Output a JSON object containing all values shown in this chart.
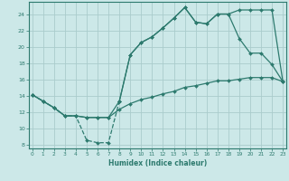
{
  "xlabel": "Humidex (Indice chaleur)",
  "bg_color": "#cce8e8",
  "grid_color": "#aacccc",
  "line_color": "#2d7a6e",
  "line1_x": [
    0,
    1,
    2,
    3,
    4,
    5,
    6,
    7,
    8,
    9,
    10,
    11,
    12,
    13,
    14,
    15,
    16,
    17,
    18,
    19,
    20,
    21,
    22,
    23
  ],
  "line1_y": [
    14.1,
    13.3,
    12.5,
    11.5,
    11.5,
    8.5,
    8.2,
    8.2,
    13.3,
    19.0,
    20.5,
    21.2,
    22.3,
    23.5,
    24.8,
    23.0,
    22.8,
    24.0,
    24.0,
    24.5,
    24.5,
    24.5,
    24.5,
    15.7
  ],
  "line2_x": [
    0,
    1,
    2,
    3,
    4,
    5,
    6,
    7,
    8,
    9,
    10,
    11,
    12,
    13,
    14,
    15,
    16,
    17,
    18,
    19,
    20,
    21,
    22,
    23
  ],
  "line2_y": [
    14.1,
    13.3,
    12.5,
    11.5,
    11.5,
    11.3,
    11.3,
    11.3,
    12.3,
    13.0,
    13.5,
    13.8,
    14.2,
    14.5,
    15.0,
    15.2,
    15.5,
    15.8,
    15.8,
    16.0,
    16.2,
    16.2,
    16.2,
    15.7
  ],
  "line3_x": [
    0,
    1,
    2,
    3,
    4,
    5,
    6,
    7,
    8,
    9,
    10,
    11,
    12,
    13,
    14,
    15,
    16,
    17,
    18,
    19,
    20,
    21,
    22,
    23
  ],
  "line3_y": [
    14.1,
    13.3,
    12.5,
    11.5,
    11.5,
    11.3,
    11.3,
    11.3,
    13.3,
    19.0,
    20.5,
    21.2,
    22.3,
    23.5,
    24.8,
    23.0,
    22.8,
    24.0,
    24.0,
    21.0,
    19.2,
    19.2,
    17.8,
    15.7
  ],
  "xlim": [
    -0.3,
    23.3
  ],
  "ylim": [
    7.5,
    25.5
  ],
  "yticks": [
    8,
    10,
    12,
    14,
    16,
    18,
    20,
    22,
    24
  ],
  "xticks": [
    0,
    1,
    2,
    3,
    4,
    5,
    6,
    7,
    8,
    9,
    10,
    11,
    12,
    13,
    14,
    15,
    16,
    17,
    18,
    19,
    20,
    21,
    22,
    23
  ]
}
